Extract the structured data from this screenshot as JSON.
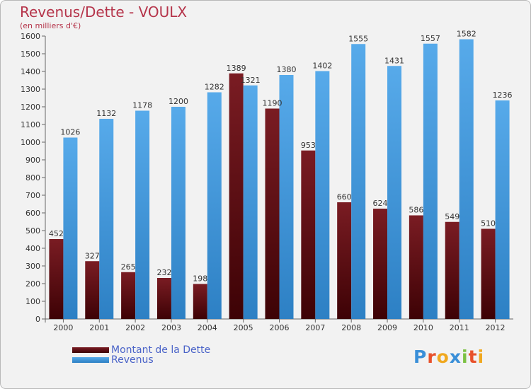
{
  "title": "Revenus/Dette - VOULX",
  "subtitle": "(en milliers d'€)",
  "logo": {
    "letters": [
      "P",
      "r",
      "o",
      "x",
      "i",
      "t",
      "i"
    ]
  },
  "colors": {
    "debt": "#7a1c23",
    "debt_dark": "#3d0205",
    "revenue": "#57aaea",
    "revenue_dark": "#2d80c4",
    "title": "#b5344a",
    "legend_text": "#4a63c8",
    "logo": [
      "#3a8fd8",
      "#e8512b",
      "#f0a81f",
      "#3a8fd8",
      "#7cc143",
      "#e8512b",
      "#f0a81f"
    ]
  },
  "legend": {
    "debt_label": "Montant de la Dette",
    "revenue_label": "Revenus"
  },
  "chart_data": {
    "type": "bar",
    "title": "Revenus/Dette - VOULX",
    "ylabel": "(en milliers d'€)",
    "xlabel": "",
    "ylim": [
      0,
      1600
    ],
    "ytick_step": 100,
    "grid": false,
    "legend_position": "bottom-left",
    "categories": [
      "2000",
      "2001",
      "2002",
      "2003",
      "2004",
      "2005",
      "2006",
      "2007",
      "2008",
      "2009",
      "2010",
      "2011",
      "2012"
    ],
    "series": [
      {
        "name": "Montant de la Dette",
        "values": [
          452,
          327,
          265,
          232,
          198,
          1389,
          1190,
          953,
          660,
          624,
          586,
          549,
          510
        ]
      },
      {
        "name": "Revenus",
        "values": [
          1026,
          1132,
          1178,
          1200,
          1282,
          1321,
          1380,
          1402,
          1555,
          1431,
          1557,
          1582,
          1236
        ]
      }
    ]
  }
}
